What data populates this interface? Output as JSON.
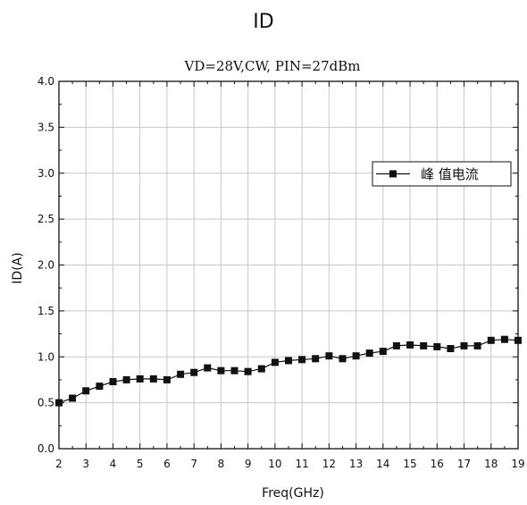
{
  "page_title": "ID",
  "chart_data": {
    "type": "line",
    "title": "VD=28V,CW, PIN=27dBm",
    "xlabel": "Freq(GHz)",
    "ylabel": "ID(A)",
    "xlim": [
      2,
      19
    ],
    "ylim": [
      0.0,
      4.0
    ],
    "x_ticks": [
      "2",
      "3",
      "4",
      "5",
      "6",
      "7",
      "8",
      "9",
      "10",
      "11",
      "12",
      "13",
      "14",
      "15",
      "16",
      "17",
      "18",
      "19"
    ],
    "y_ticks": [
      "0.0",
      "0.5",
      "1.0",
      "1.5",
      "2.0",
      "2.5",
      "3.0",
      "3.5",
      "4.0"
    ],
    "grid": true,
    "legend_position": "top-right",
    "series": [
      {
        "name": "峰 值电流",
        "color": "#111111",
        "marker": "square",
        "x": [
          2.0,
          2.5,
          3.0,
          3.5,
          4.0,
          4.5,
          5.0,
          5.5,
          6.0,
          6.5,
          7.0,
          7.5,
          8.0,
          8.5,
          9.0,
          9.5,
          10.0,
          10.5,
          11.0,
          11.5,
          12.0,
          12.5,
          13.0,
          13.5,
          14.0,
          14.5,
          15.0,
          15.5,
          16.0,
          16.5,
          17.0,
          17.5,
          18.0,
          18.5,
          19.0
        ],
        "y": [
          0.5,
          0.55,
          0.63,
          0.68,
          0.73,
          0.75,
          0.76,
          0.76,
          0.75,
          0.81,
          0.83,
          0.88,
          0.85,
          0.85,
          0.84,
          0.87,
          0.94,
          0.96,
          0.97,
          0.98,
          1.01,
          0.98,
          1.01,
          1.04,
          1.06,
          1.12,
          1.13,
          1.12,
          1.11,
          1.09,
          1.12,
          1.12,
          1.18,
          1.19,
          1.18
        ]
      }
    ]
  }
}
